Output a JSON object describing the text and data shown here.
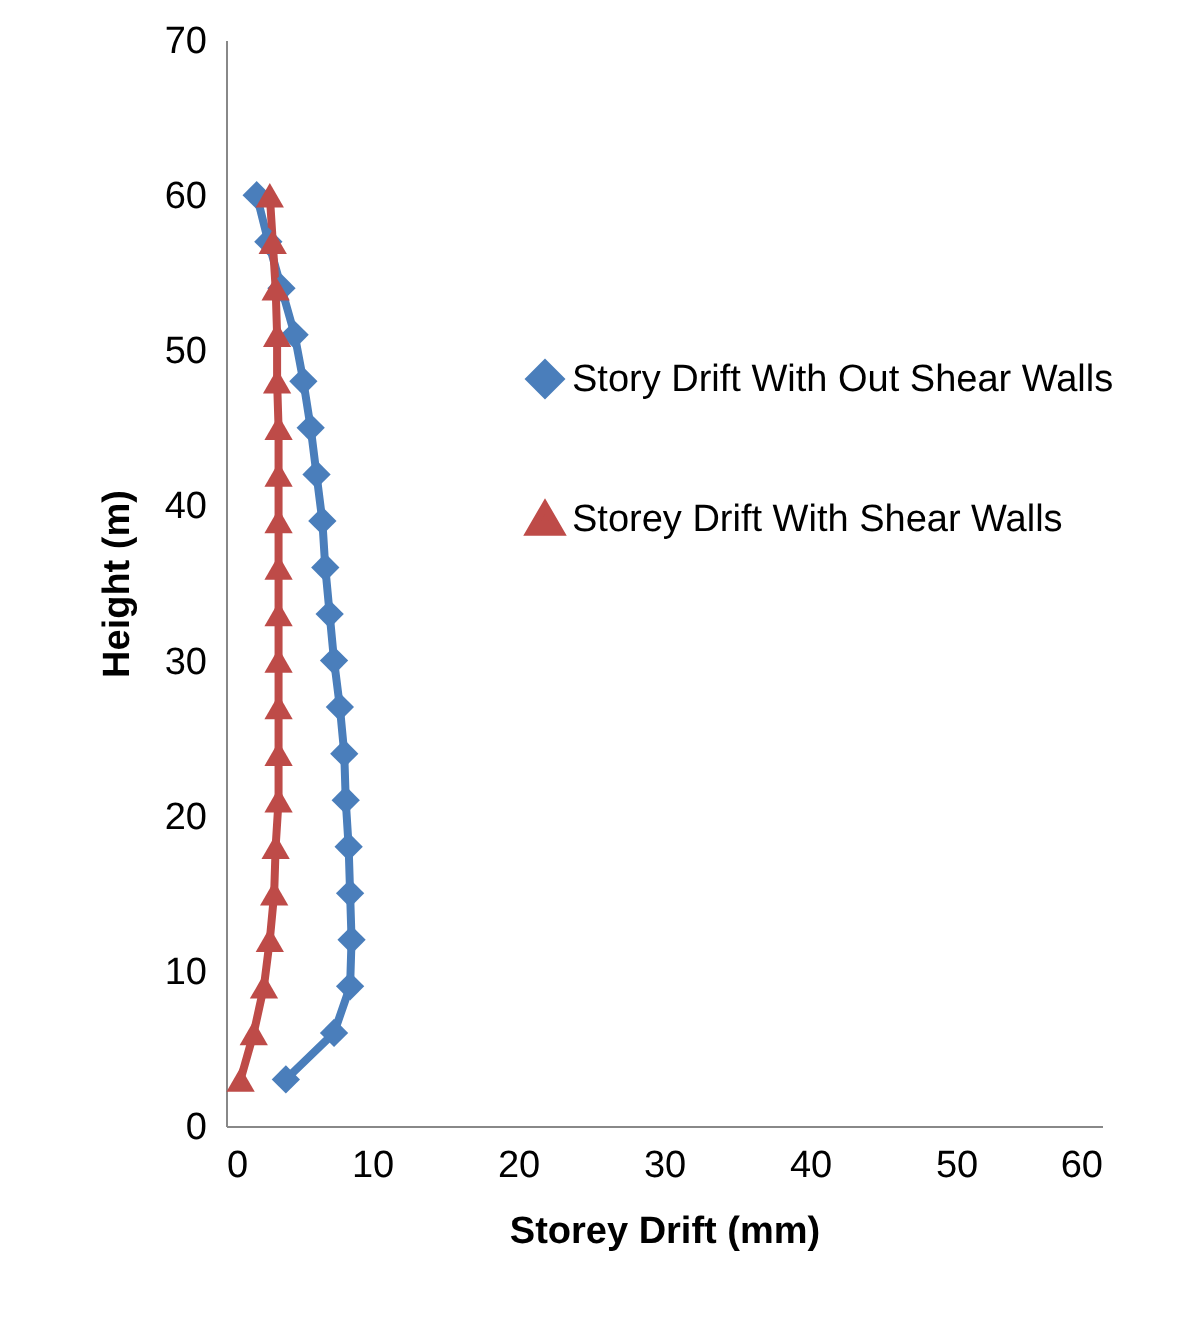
{
  "chart_data": {
    "type": "line",
    "xlabel": "Storey Drift (mm)",
    "ylabel": "Height (m)",
    "xlim": [
      0,
      60
    ],
    "xticks": [
      0,
      10,
      20,
      30,
      40,
      50,
      60
    ],
    "ylim": [
      0,
      70
    ],
    "yticks": [
      0,
      10,
      20,
      30,
      40,
      50,
      60,
      70
    ],
    "grid": false,
    "legend": "right",
    "series": [
      {
        "name": "Story Drift With Out Shear Walls",
        "color": "#4a7ebb",
        "marker": "diamond",
        "x": [
          4.1,
          7.4,
          8.5,
          8.6,
          8.5,
          8.4,
          8.2,
          8.1,
          7.8,
          7.4,
          7.1,
          6.8,
          6.6,
          6.2,
          5.8,
          5.3,
          4.7,
          3.8,
          2.9,
          2.1
        ],
        "values": [
          3,
          6,
          9,
          12,
          15,
          18,
          21,
          24,
          27,
          30,
          33,
          36,
          39,
          42,
          45,
          48,
          51,
          54,
          57,
          60
        ]
      },
      {
        "name": "Storey Drift With Shear Walls",
        "color": "#be4b48",
        "marker": "triangle",
        "x": [
          1.0,
          1.9,
          2.6,
          3.0,
          3.3,
          3.4,
          3.6,
          3.6,
          3.6,
          3.6,
          3.6,
          3.6,
          3.6,
          3.6,
          3.6,
          3.5,
          3.5,
          3.4,
          3.2,
          3.0
        ],
        "values": [
          3,
          6,
          9,
          12,
          15,
          18,
          21,
          24,
          27,
          30,
          33,
          36,
          39,
          42,
          45,
          48,
          51,
          54,
          57,
          60
        ]
      }
    ]
  }
}
